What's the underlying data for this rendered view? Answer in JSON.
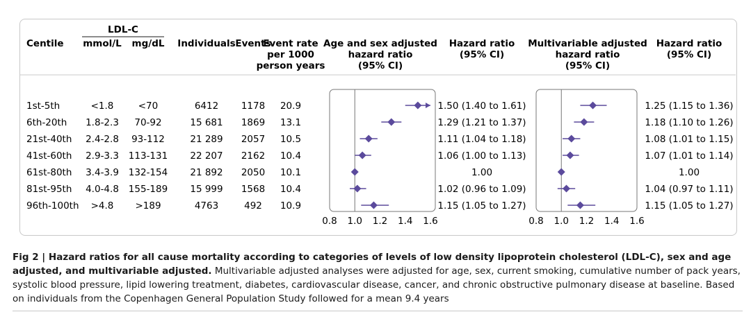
{
  "headers": {
    "centile": "Centile",
    "ldl_group": "LDL-C",
    "mmol": "mmol/L",
    "mgdl": "mg/dL",
    "individuals": "Individuals",
    "events": "Events",
    "event_rate": [
      "Event rate",
      "per 1000",
      "person years"
    ],
    "age_sex_hr": [
      "Age and sex adjusted",
      "hazard ratio",
      "(95% CI)"
    ],
    "hr_ci_1": [
      "Hazard ratio",
      "(95% CI)"
    ],
    "multi_hr": [
      "Multivariable adjusted",
      "hazard ratio",
      "(95% CI)"
    ],
    "hr_ci_2": [
      "Hazard ratio",
      "(95% CI)"
    ]
  },
  "rows": [
    {
      "centile": "1st-5th",
      "mmol": "<1.8",
      "mgdl": "<70",
      "individuals": "6412",
      "events": "1178",
      "rate": "20.9",
      "hr1_text": "1.50 (1.40 to 1.61)",
      "hr2_text": "1.25 (1.15 to 1.36)"
    },
    {
      "centile": "6th-20th",
      "mmol": "1.8-2.3",
      "mgdl": "70-92",
      "individuals": "15 681",
      "events": "1869",
      "rate": "13.1",
      "hr1_text": "1.29 (1.21 to 1.37)",
      "hr2_text": "1.18 (1.10 to 1.26)"
    },
    {
      "centile": "21st-40th",
      "mmol": "2.4-2.8",
      "mgdl": "93-112",
      "individuals": "21 289",
      "events": "2057",
      "rate": "10.5",
      "hr1_text": "1.11 (1.04 to 1.18)",
      "hr2_text": "1.08 (1.01 to 1.15)"
    },
    {
      "centile": "41st-60th",
      "mmol": "2.9-3.3",
      "mgdl": "113-131",
      "individuals": "22 207",
      "events": "2162",
      "rate": "10.4",
      "hr1_text": "1.06 (1.00 to 1.13)",
      "hr2_text": "1.07 (1.01 to 1.14)"
    },
    {
      "centile": "61st-80th",
      "mmol": "3.4-3.9",
      "mgdl": "132-154",
      "individuals": "21 892",
      "events": "2050",
      "rate": "10.1",
      "hr1_text": "1.00",
      "hr2_text": "1.00"
    },
    {
      "centile": "81st-95th",
      "mmol": "4.0-4.8",
      "mgdl": "155-189",
      "individuals": "15 999",
      "events": "1568",
      "rate": "10.4",
      "hr1_text": "1.02 (0.96 to 1.09)",
      "hr2_text": "1.04 (0.97 to 1.11)"
    },
    {
      "centile": "96th-100th",
      "mmol": ">4.8",
      "mgdl": ">189",
      "individuals": "4763",
      "events": "492",
      "rate": "10.9",
      "hr1_text": "1.15 (1.05 to 1.27)",
      "hr2_text": "1.15 (1.05 to 1.27)"
    }
  ],
  "chart_data": [
    {
      "type": "scatter",
      "xlim": [
        0.8,
        1.6
      ],
      "reference_line": 1.0,
      "ticks": [
        "0.8",
        "1.0",
        "1.2",
        "1.4",
        "1.6"
      ],
      "tick_values": [
        0.8,
        1.0,
        1.2,
        1.4,
        1.6
      ],
      "categories": [
        "1st-5th",
        "6th-20th",
        "21st-40th",
        "41st-60th",
        "61st-80th",
        "81st-95th",
        "96th-100th"
      ],
      "points": [
        {
          "est": 1.5,
          "lo": 1.4,
          "hi": 1.61
        },
        {
          "est": 1.29,
          "lo": 1.21,
          "hi": 1.37
        },
        {
          "est": 1.11,
          "lo": 1.04,
          "hi": 1.18
        },
        {
          "est": 1.06,
          "lo": 1.0,
          "hi": 1.13
        },
        {
          "est": 1.0,
          "lo": 1.0,
          "hi": 1.0
        },
        {
          "est": 1.02,
          "lo": 0.96,
          "hi": 1.09
        },
        {
          "est": 1.15,
          "lo": 1.05,
          "hi": 1.27
        }
      ]
    },
    {
      "type": "scatter",
      "xlim": [
        0.8,
        1.6
      ],
      "reference_line": 1.0,
      "ticks": [
        "0.8",
        "1.0",
        "1.2",
        "1.4",
        "1.6"
      ],
      "tick_values": [
        0.8,
        1.0,
        1.2,
        1.4,
        1.6
      ],
      "categories": [
        "1st-5th",
        "6th-20th",
        "21st-40th",
        "41st-60th",
        "61st-80th",
        "81st-95th",
        "96th-100th"
      ],
      "points": [
        {
          "est": 1.25,
          "lo": 1.15,
          "hi": 1.36
        },
        {
          "est": 1.18,
          "lo": 1.1,
          "hi": 1.26
        },
        {
          "est": 1.08,
          "lo": 1.01,
          "hi": 1.15
        },
        {
          "est": 1.07,
          "lo": 1.01,
          "hi": 1.14
        },
        {
          "est": 1.0,
          "lo": 1.0,
          "hi": 1.0
        },
        {
          "est": 1.04,
          "lo": 0.97,
          "hi": 1.11
        },
        {
          "est": 1.15,
          "lo": 1.05,
          "hi": 1.27
        }
      ]
    }
  ],
  "colors": {
    "marker": "#5b4a9c",
    "axis": "#777777",
    "frame": "#c8c8c8"
  },
  "caption": {
    "lead": "Fig 2 | Hazard ratios for all cause mortality according to categories of levels of low density lipoprotein cholesterol (LDL-C), sex and age adjusted, and multivariable adjusted.",
    "body": " Multivariable adjusted analyses were adjusted for age, sex, current smoking, cumulative number of pack years, systolic blood pressure, lipid lowering treatment, diabetes, cardiovascular disease, cancer, and chronic obstructive pulmonary disease at baseline. Based on individuals from the Copenhagen General Population Study followed for a mean 9.4 years"
  }
}
